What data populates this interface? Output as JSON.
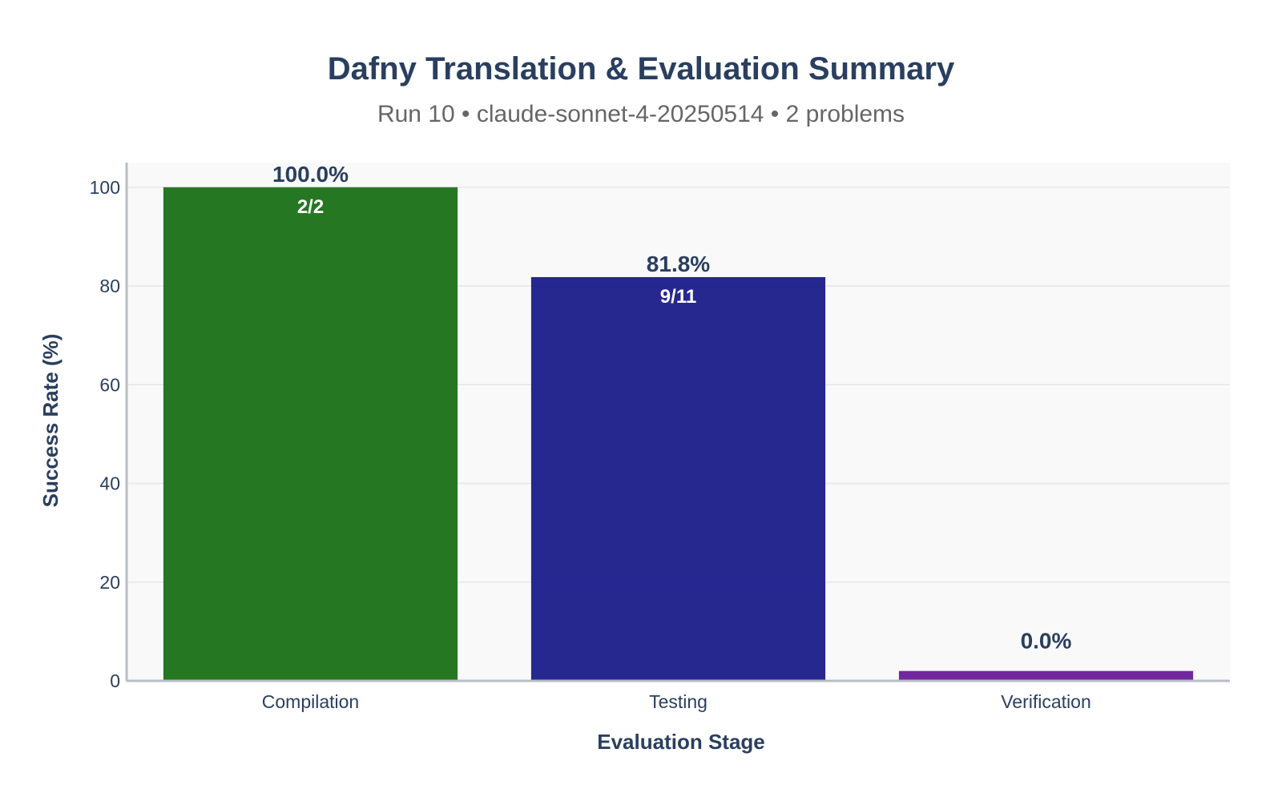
{
  "chart_data": {
    "type": "bar",
    "title": "Dafny Translation & Evaluation Summary",
    "subtitle": "Run 10 • claude-sonnet-4-20250514 • 2 problems",
    "xlabel": "Evaluation Stage",
    "ylabel": "Success Rate (%)",
    "ylim": [
      0,
      105
    ],
    "yticks": [
      0,
      20,
      40,
      60,
      80,
      100
    ],
    "grid": true,
    "categories": [
      "Compilation",
      "Testing",
      "Verification"
    ],
    "values": [
      100.0,
      81.8,
      0.0
    ],
    "display_values": [
      100.0,
      81.8,
      2.0
    ],
    "value_labels": [
      "100.0%",
      "81.8%",
      "0.0%"
    ],
    "count_labels": [
      "2/2",
      "9/11",
      ""
    ],
    "colors": [
      "#1a7016",
      "#1b1b8a",
      "#6a1b9a"
    ],
    "bar_opacity": 0.95,
    "plot_background": "#f9f9f9",
    "grid_color": "#e6e6e6",
    "axis_line_color": "#b8bec6",
    "text_color": "#2a3f5f"
  }
}
